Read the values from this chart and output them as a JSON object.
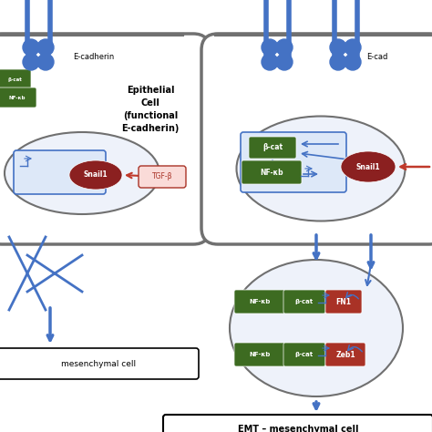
{
  "bg_color": "#ffffff",
  "cell_border_color": "#707070",
  "blue_color": "#4472C4",
  "dark_green": "#3D6B21",
  "dark_green2": "#4A7C2F",
  "red_oval_color": "#8B2020",
  "red_box_color": "#A93226",
  "arrow_red_color": "#C0392B",
  "title_left": "Epithelial\nCell\n(functional\nE-cadherin)",
  "label_ecadherin": "E-cadherin",
  "label_tgfb": "TGF-β",
  "label_snail1": "Snail1",
  "label_bcat": "β-cat",
  "label_nfkb": "NF-κb",
  "label_fn1": "FN1",
  "label_zeb1": "Zeb1",
  "label_emt": "EMT – mesenchymal cell",
  "label_meso_left": "mesenchymal cell",
  "label_cat": "β-cat",
  "label_xb": "NF-κb"
}
